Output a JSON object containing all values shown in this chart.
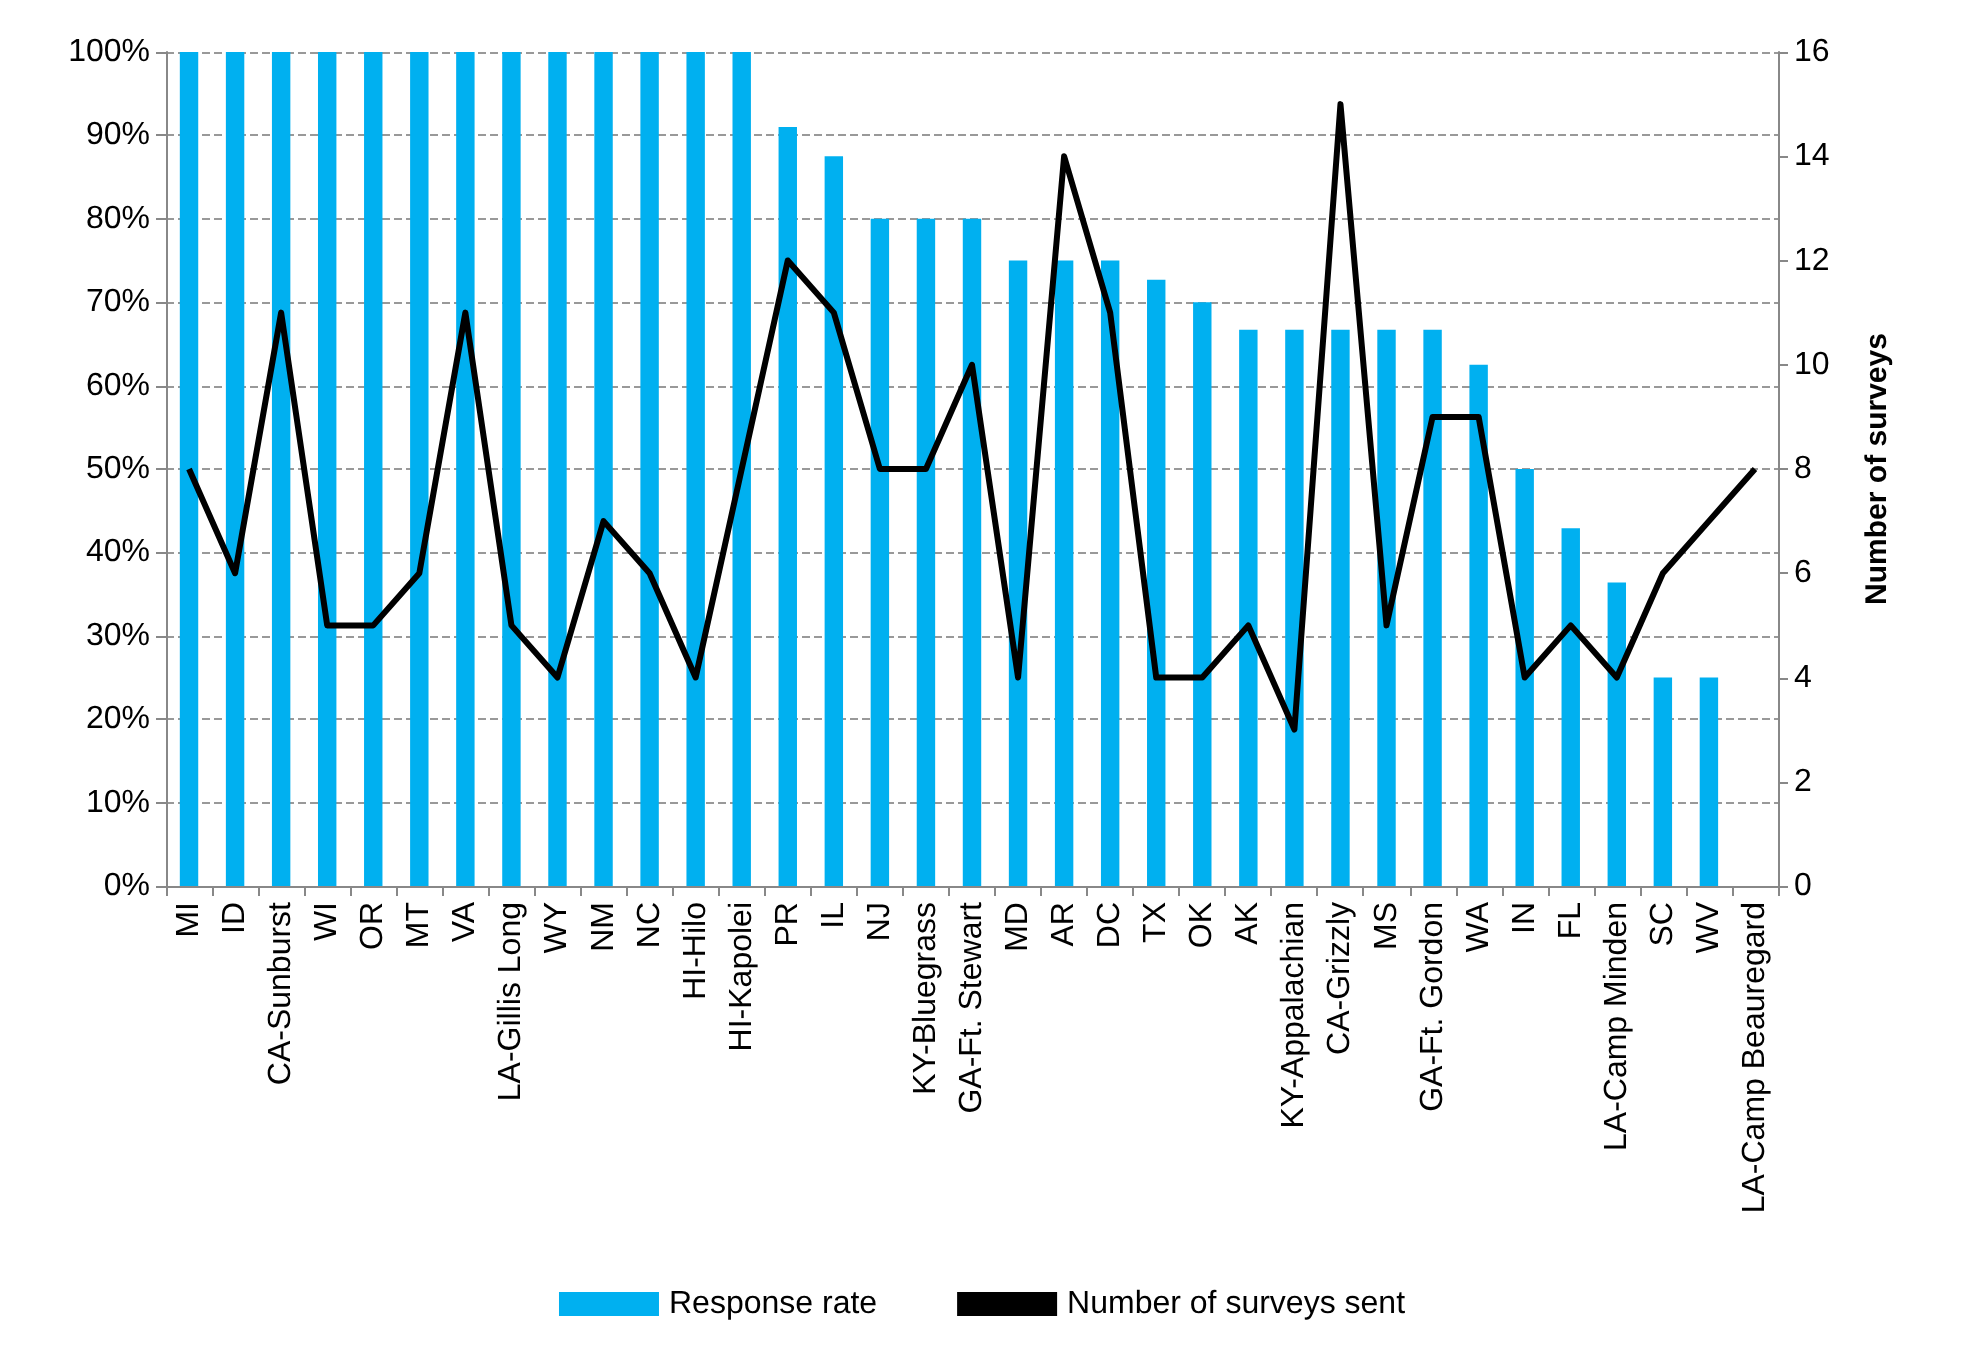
{
  "chart_data": {
    "type": "bar",
    "y2label": "Number of surveys",
    "categories": [
      "MI",
      "ID",
      "CA-Sunburst",
      "WI",
      "OR",
      "MT",
      "VA",
      "LA-Gillis Long",
      "WY",
      "NM",
      "NC",
      "HI-Hilo",
      "HI-Kapolei",
      "PR",
      "IL",
      "NJ",
      "KY-Bluegrass",
      "GA-Ft. Stewart",
      "MD",
      "AR",
      "DC",
      "TX",
      "OK",
      "AK",
      "KY-Appalachian",
      "CA-Grizzly",
      "MS",
      "GA-Ft. Gordon",
      "WA",
      "IN",
      "FL",
      "LA-Camp Minden",
      "SC",
      "WV",
      "LA-Camp Beauregard"
    ],
    "series": [
      {
        "name": "Response rate",
        "color": "#00b0f0",
        "values": [
          100,
          100,
          100,
          100,
          100,
          100,
          100,
          100,
          100,
          100,
          100,
          100,
          100,
          91,
          87.5,
          80,
          80,
          80,
          75,
          75,
          75,
          72.7,
          70,
          66.7,
          66.7,
          66.7,
          66.7,
          66.7,
          62.5,
          50,
          42.9,
          36.4,
          25,
          25,
          0
        ]
      },
      {
        "name": "Number of surveys sent",
        "type": "line",
        "axis": "y2",
        "color": "#000000",
        "values": [
          8,
          6,
          11,
          5,
          5,
          6,
          11,
          5,
          4,
          7,
          6,
          4,
          8,
          12,
          11,
          8,
          8,
          10,
          4,
          14,
          11,
          4,
          4,
          5,
          3,
          15,
          5,
          9,
          9,
          4,
          5,
          4,
          6,
          7,
          8
        ]
      }
    ],
    "ylim": [
      0,
      100
    ],
    "yticks": [
      {
        "value": 0,
        "label": "0%"
      },
      {
        "value": 10,
        "label": "10%"
      },
      {
        "value": 20,
        "label": "20%"
      },
      {
        "value": 30,
        "label": "30%"
      },
      {
        "value": 40,
        "label": "40%"
      },
      {
        "value": 50,
        "label": "50%"
      },
      {
        "value": 60,
        "label": "60%"
      },
      {
        "value": 70,
        "label": "70%"
      },
      {
        "value": 80,
        "label": "80%"
      },
      {
        "value": 90,
        "label": "90%"
      },
      {
        "value": 100,
        "label": "100%"
      }
    ],
    "y2lim": [
      0,
      16
    ],
    "y2ticks": [
      0,
      2,
      4,
      6,
      8,
      10,
      12,
      14,
      16
    ],
    "grid": "y",
    "legend": "bottom",
    "marker": "none",
    "line_style": "solid"
  }
}
